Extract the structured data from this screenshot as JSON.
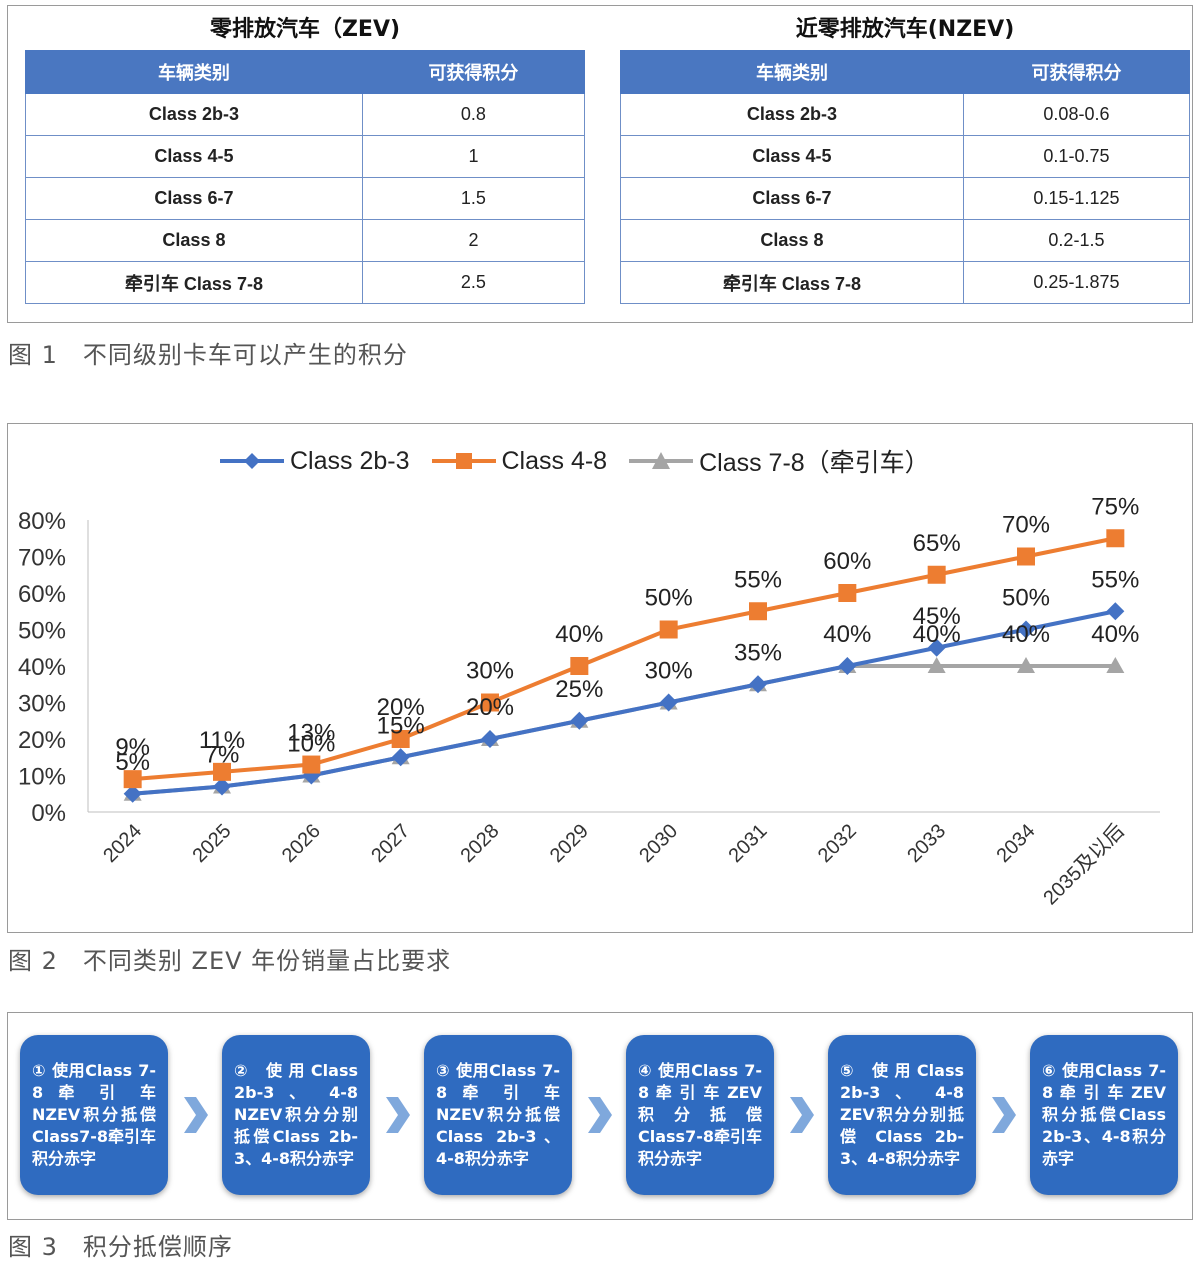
{
  "fig1": {
    "zev": {
      "title": "零排放汽车（ZEV)",
      "headers": [
        "车辆类别",
        "可获得积分"
      ],
      "rows": [
        {
          "cat": "Class 2b-3",
          "val": "0.8"
        },
        {
          "cat": "Class 4-5",
          "val": "1"
        },
        {
          "cat": "Class 6-7",
          "val": "1.5"
        },
        {
          "cat": "Class 8",
          "val": "2"
        },
        {
          "cat": "牵引车 Class 7-8",
          "val": "2.5"
        }
      ]
    },
    "nzev": {
      "title": "近零排放汽车(NZEV)",
      "headers": [
        "车辆类别",
        "可获得积分"
      ],
      "rows": [
        {
          "cat": "Class 2b-3",
          "val": "0.08-0.6"
        },
        {
          "cat": "Class 4-5",
          "val": "0.1-0.75"
        },
        {
          "cat": "Class 6-7",
          "val": "0.15-1.125"
        },
        {
          "cat": "Class 8",
          "val": "0.2-1.5"
        },
        {
          "cat": "牵引车 Class 7-8",
          "val": "0.25-1.875"
        }
      ]
    },
    "caption": "图 1　不同级别卡车可以产生的积分"
  },
  "chart_data": {
    "type": "line",
    "categories": [
      "2024",
      "2025",
      "2026",
      "2027",
      "2028",
      "2029",
      "2030",
      "2031",
      "2032",
      "2033",
      "2034",
      "2035及以后"
    ],
    "series": [
      {
        "name": "Class 2b-3",
        "color": "#4472c4",
        "marker": "diamond",
        "values": [
          5,
          7,
          10,
          15,
          20,
          25,
          30,
          35,
          40,
          45,
          50,
          55
        ]
      },
      {
        "name": "Class 4-8",
        "color": "#ed7d31",
        "marker": "square",
        "values": [
          9,
          11,
          13,
          20,
          30,
          40,
          50,
          55,
          60,
          65,
          70,
          75
        ]
      },
      {
        "name": "Class 7-8（牵引车）",
        "color": "#a5a5a5",
        "marker": "triangle",
        "values": [
          5,
          7,
          10,
          15,
          20,
          25,
          30,
          35,
          40,
          40,
          40,
          40
        ]
      }
    ],
    "data_labels": {
      "Class 4-8": [
        "9%",
        "11%",
        "13%",
        "20%",
        "30%",
        "40%",
        "50%",
        "55%",
        "60%",
        "65%",
        "70%",
        "75%"
      ],
      "Class 2b-3": [
        "5%",
        "7%",
        "10%",
        "15%",
        "20%",
        "25%",
        "30%",
        "35%",
        "40%",
        "45%",
        "50%",
        "55%"
      ],
      "Class 7-8（牵引车）": [
        "",
        "",
        "",
        "",
        "",
        "",
        "",
        "",
        "",
        "40%",
        "40%",
        "40%"
      ]
    },
    "y_ticks": [
      "0%",
      "10%",
      "20%",
      "30%",
      "40%",
      "50%",
      "60%",
      "70%",
      "80%"
    ],
    "ylim": [
      0,
      80
    ],
    "grid": false,
    "legend": "top"
  },
  "fig2": {
    "caption": "图 2　不同类别 ZEV 年份销量占比要求"
  },
  "fig3": {
    "steps": [
      "① 使用Class 7-8 牵 引 车 NZEV积分抵偿Class7-8牵引车积分赤字",
      "② 使用Class 2b-3 、 4-8 NZEV积分分别抵偿Class 2b-3、4-8积分赤字",
      "③ 使用Class 7-8 牵 引 车 NZEV积分抵偿Class 2b-3、4-8积分赤字",
      "④ 使用Class 7-8 牵 引 车 ZEV积分抵偿Class7-8牵引车积分赤字",
      "⑤ 使用Class 2b-3 、 4-8 ZEV积分分别抵 偿 Class 2b-3、4-8积分赤字",
      "⑥ 使用Class 7-8 牵 引 车 ZEV积分抵偿Class 2b-3、4-8积分赤字"
    ],
    "step_color": "#2f6bc0",
    "arrow_color": "#7fa8dc",
    "caption": "图 3　积分抵偿顺序"
  }
}
